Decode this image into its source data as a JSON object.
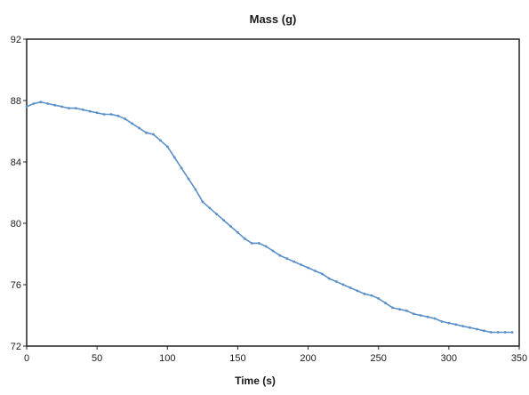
{
  "chart_data": {
    "type": "line",
    "title": "Mass (g)",
    "xlabel": "Time (s)",
    "ylabel": "",
    "xlim": [
      0,
      350
    ],
    "ylim": [
      72,
      92
    ],
    "xticks": [
      0,
      50,
      100,
      150,
      200,
      250,
      300,
      350
    ],
    "yticks": [
      72,
      76,
      80,
      84,
      88,
      92
    ],
    "grid": false,
    "legend": "none",
    "line_color": "#5b8fc8",
    "series": [
      {
        "x": [
          0,
          5,
          10,
          15,
          20,
          25,
          30,
          35,
          40,
          45,
          50,
          55,
          60,
          65,
          70,
          75,
          80,
          85,
          90,
          95,
          100,
          105,
          110,
          115,
          120,
          125,
          130,
          135,
          140,
          145,
          150,
          155,
          160,
          165,
          170,
          175,
          180,
          185,
          190,
          195,
          200,
          205,
          210,
          215,
          220,
          225,
          230,
          235,
          240,
          245,
          250,
          255,
          260,
          265,
          270,
          275,
          280,
          285,
          290,
          295,
          300,
          305,
          310,
          315,
          320,
          325,
          330,
          335,
          340,
          345
        ],
        "y": [
          87.6,
          87.8,
          87.9,
          87.8,
          87.7,
          87.6,
          87.5,
          87.5,
          87.4,
          87.3,
          87.2,
          87.1,
          87.1,
          87.0,
          86.8,
          86.5,
          86.2,
          85.9,
          85.8,
          85.4,
          85.0,
          84.3,
          83.6,
          82.9,
          82.2,
          81.4,
          81.0,
          80.6,
          80.2,
          79.8,
          79.4,
          79.0,
          78.7,
          78.7,
          78.5,
          78.2,
          77.9,
          77.7,
          77.5,
          77.3,
          77.1,
          76.9,
          76.7,
          76.4,
          76.2,
          76.0,
          75.8,
          75.6,
          75.4,
          75.3,
          75.1,
          74.8,
          74.5,
          74.4,
          74.3,
          74.1,
          74.0,
          73.9,
          73.8,
          73.6,
          73.5,
          73.4,
          73.3,
          73.2,
          73.1,
          73.0,
          72.9,
          72.9,
          72.9,
          72.9
        ]
      }
    ]
  }
}
